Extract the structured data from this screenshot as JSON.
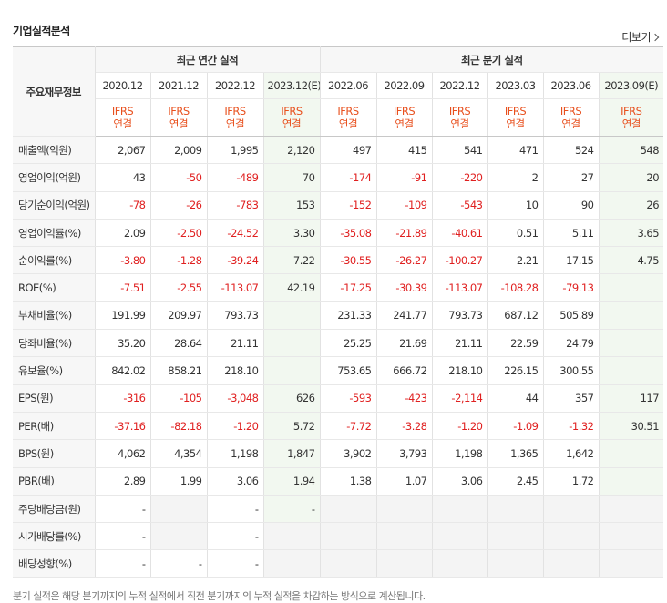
{
  "title": "기업실적분석",
  "more_label": "더보기",
  "corner_label": "주요재무정보",
  "groups": [
    "최근 연간 실적",
    "최근 분기 실적"
  ],
  "periods": [
    "2020.12",
    "2021.12",
    "2022.12",
    "2023.12(E)",
    "2022.06",
    "2022.09",
    "2022.12",
    "2023.03",
    "2023.06",
    "2023.09(E)"
  ],
  "ifrs_top": "IFRS",
  "ifrs_bottom": "연결",
  "rows": [
    {
      "label": "매출액(억원)",
      "values": [
        "2,067",
        "2,009",
        "1,995",
        "2,120",
        "497",
        "415",
        "541",
        "471",
        "524",
        "548"
      ]
    },
    {
      "label": "영업이익(억원)",
      "values": [
        "43",
        "-50",
        "-489",
        "70",
        "-174",
        "-91",
        "-220",
        "2",
        "27",
        "20"
      ]
    },
    {
      "label": "당기순이익(억원)",
      "values": [
        "-78",
        "-26",
        "-783",
        "153",
        "-152",
        "-109",
        "-543",
        "10",
        "90",
        "26"
      ]
    },
    {
      "label": "영업이익률(%)",
      "values": [
        "2.09",
        "-2.50",
        "-24.52",
        "3.30",
        "-35.08",
        "-21.89",
        "-40.61",
        "0.51",
        "5.11",
        "3.65"
      ]
    },
    {
      "label": "순이익률(%)",
      "values": [
        "-3.80",
        "-1.28",
        "-39.24",
        "7.22",
        "-30.55",
        "-26.27",
        "-100.27",
        "2.21",
        "17.15",
        "4.75"
      ]
    },
    {
      "label": "ROE(%)",
      "values": [
        "-7.51",
        "-2.55",
        "-113.07",
        "42.19",
        "-17.25",
        "-30.39",
        "-113.07",
        "-108.28",
        "-79.13",
        ""
      ]
    },
    {
      "label": "부채비율(%)",
      "values": [
        "191.99",
        "209.97",
        "793.73",
        "",
        "231.33",
        "241.77",
        "793.73",
        "687.12",
        "505.89",
        ""
      ]
    },
    {
      "label": "당좌비율(%)",
      "values": [
        "35.20",
        "28.64",
        "21.11",
        "",
        "25.25",
        "21.69",
        "21.11",
        "22.59",
        "24.79",
        ""
      ]
    },
    {
      "label": "유보율(%)",
      "values": [
        "842.02",
        "858.21",
        "218.10",
        "",
        "753.65",
        "666.72",
        "218.10",
        "226.15",
        "300.55",
        ""
      ]
    },
    {
      "label": "EPS(원)",
      "values": [
        "-316",
        "-105",
        "-3,048",
        "626",
        "-593",
        "-423",
        "-2,114",
        "44",
        "357",
        "117"
      ]
    },
    {
      "label": "PER(배)",
      "values": [
        "-37.16",
        "-82.18",
        "-1.20",
        "5.72",
        "-7.72",
        "-3.28",
        "-1.20",
        "-1.09",
        "-1.32",
        "30.51"
      ]
    },
    {
      "label": "BPS(원)",
      "values": [
        "4,062",
        "4,354",
        "1,198",
        "1,847",
        "3,902",
        "3,793",
        "1,198",
        "1,365",
        "1,642",
        ""
      ]
    },
    {
      "label": "PBR(배)",
      "values": [
        "2.89",
        "1.99",
        "3.06",
        "1.94",
        "1.38",
        "1.07",
        "3.06",
        "2.45",
        "1.72",
        ""
      ]
    },
    {
      "label": "주당배당금(원)",
      "values": [
        "-",
        "",
        "-",
        "-",
        "",
        "",
        "",
        "",
        "",
        ""
      ]
    },
    {
      "label": "시가배당률(%)",
      "values": [
        "-",
        "",
        "-",
        "",
        "",
        "",
        "",
        "",
        "",
        ""
      ]
    },
    {
      "label": "배당성향(%)",
      "values": [
        "-",
        "-",
        "-",
        "",
        "",
        "",
        "",
        "",
        "",
        ""
      ]
    }
  ],
  "footnote": "분기 실적은 해당 분기까지의 누적 실적에서 직전 분기까지의 누적 실적을 차감하는 방식으로 계산됩니다."
}
